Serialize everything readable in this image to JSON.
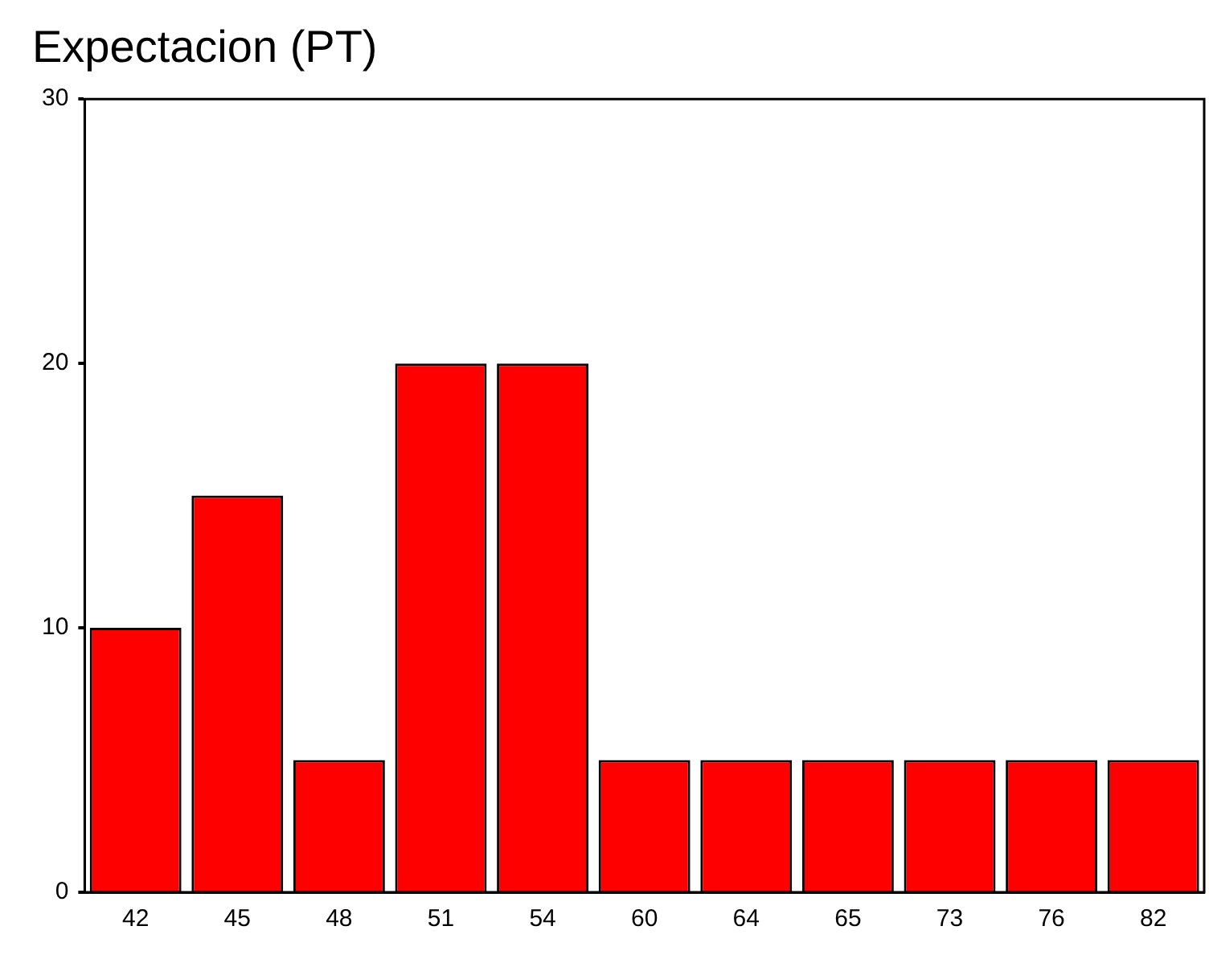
{
  "chart_data": {
    "type": "bar",
    "title": "Expectacion (PT)",
    "categories": [
      "42",
      "45",
      "48",
      "51",
      "54",
      "60",
      "64",
      "65",
      "73",
      "76",
      "82"
    ],
    "values": [
      10,
      15,
      5,
      20,
      20,
      5,
      5,
      5,
      5,
      5,
      5
    ],
    "color": "#ff0000",
    "ylim": [
      0,
      30
    ],
    "yticks": [
      0,
      10,
      20,
      30
    ],
    "grid": false,
    "legend": false
  }
}
